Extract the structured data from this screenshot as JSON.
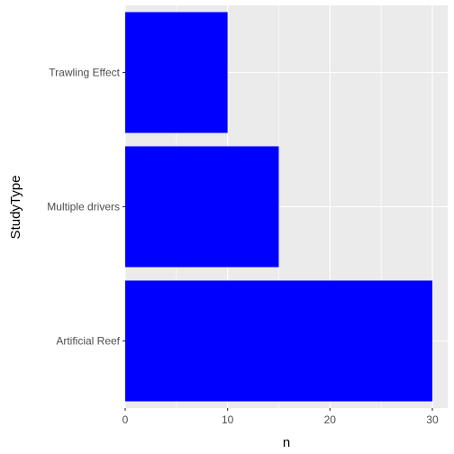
{
  "chart_data": {
    "type": "bar",
    "orientation": "horizontal",
    "categories": [
      "Trawling Effect",
      "Multiple drivers",
      "Artificial Reef"
    ],
    "values": [
      10,
      15,
      30
    ],
    "xlabel": "n",
    "ylabel": "StudyType",
    "xlim": [
      0,
      31.5
    ],
    "xticks": [
      0,
      10,
      20,
      30
    ],
    "grid": true,
    "bar_color": "#0000ff",
    "panel_background": "#ebebeb",
    "grid_color": "#ffffff"
  }
}
